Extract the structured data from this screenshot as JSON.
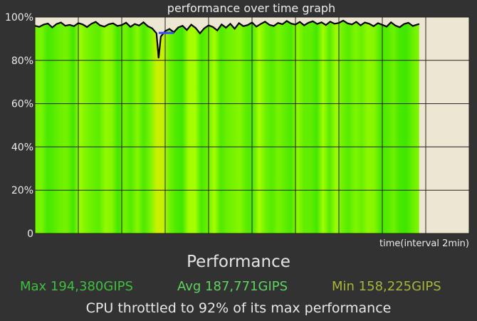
{
  "chart_data": {
    "type": "area",
    "title": "performance over time graph",
    "xlabel": "time(interval 2min)",
    "ylabel": "",
    "y_tick_labels": [
      "100%",
      "80%",
      "60%",
      "40%",
      "20%",
      "0"
    ],
    "ylim": [
      0,
      100
    ],
    "xlim": [
      0,
      100
    ],
    "data_extent_x": 88.5,
    "grid": true,
    "colors": {
      "fill_high": "#44f000",
      "fill_low": "#c8f000",
      "line": "#000000",
      "min_marker": "#3d4fff",
      "background": "#ede6d3",
      "grid": "#222222",
      "page_bg": "#323232"
    },
    "series": [
      {
        "values": [
          [
            0,
            96
          ],
          [
            1,
            95.5
          ],
          [
            2,
            96.5
          ],
          [
            3,
            97
          ],
          [
            4,
            95.2
          ],
          [
            5,
            96.8
          ],
          [
            6,
            97.5
          ],
          [
            7,
            96
          ],
          [
            8,
            96.4
          ],
          [
            9,
            95.8
          ],
          [
            10,
            97.2
          ],
          [
            11,
            96.6
          ],
          [
            12,
            95.4
          ],
          [
            13,
            96.9
          ],
          [
            14,
            97.8
          ],
          [
            15,
            96.2
          ],
          [
            16,
            95.6
          ],
          [
            17,
            96.7
          ],
          [
            18,
            97.1
          ],
          [
            19,
            95.9
          ],
          [
            20,
            96.3
          ],
          [
            21,
            97.4
          ],
          [
            22,
            95.5
          ],
          [
            23,
            96.8
          ],
          [
            24,
            96.1
          ],
          [
            25,
            97.6
          ],
          [
            26,
            95.8
          ],
          [
            27,
            94.8
          ],
          [
            28,
            92.5
          ],
          [
            28.5,
            81
          ],
          [
            29,
            91
          ],
          [
            30,
            93.5
          ],
          [
            31,
            94.5
          ],
          [
            32,
            93
          ],
          [
            33,
            95.2
          ],
          [
            34,
            96
          ],
          [
            35,
            94
          ],
          [
            36,
            96.5
          ],
          [
            37,
            95
          ],
          [
            38,
            92.5
          ],
          [
            39,
            94.8
          ],
          [
            40,
            96.2
          ],
          [
            41,
            95.4
          ],
          [
            42,
            93.8
          ],
          [
            43,
            96.6
          ],
          [
            44,
            95.1
          ],
          [
            45,
            96.9
          ],
          [
            46,
            94.6
          ],
          [
            47,
            97.2
          ],
          [
            48,
            95.8
          ],
          [
            49,
            96.3
          ],
          [
            50,
            97.5
          ],
          [
            51,
            95.6
          ],
          [
            52,
            96.8
          ],
          [
            53,
            97.9
          ],
          [
            54,
            96.4
          ],
          [
            55,
            95.9
          ],
          [
            56,
            97.3
          ],
          [
            57,
            96.7
          ],
          [
            58,
            98.2
          ],
          [
            59,
            97
          ],
          [
            60,
            96.5
          ],
          [
            61,
            97.8
          ],
          [
            62,
            96.2
          ],
          [
            63,
            97.4
          ],
          [
            64,
            98.1
          ],
          [
            65,
            96.8
          ],
          [
            66,
            97.6
          ],
          [
            67,
            96.3
          ],
          [
            68,
            97.9
          ],
          [
            69,
            96.9
          ],
          [
            70,
            97.3
          ],
          [
            71,
            98.4
          ],
          [
            72,
            97.1
          ],
          [
            73,
            96.6
          ],
          [
            74,
            97.8
          ],
          [
            75,
            96.2
          ],
          [
            76,
            97.5
          ],
          [
            77,
            96.9
          ],
          [
            78,
            95.8
          ],
          [
            79,
            97.2
          ],
          [
            80,
            96.4
          ],
          [
            81,
            95.6
          ],
          [
            82,
            97.6
          ],
          [
            83,
            96.1
          ],
          [
            84,
            95.3
          ],
          [
            85,
            96.8
          ],
          [
            86,
            97.4
          ],
          [
            87,
            95.9
          ],
          [
            88,
            96.5
          ],
          [
            88.5,
            96.8
          ]
        ]
      }
    ],
    "min_marker": {
      "x_start": 28.5,
      "x_end": 32,
      "y": 92.7
    }
  },
  "summary": {
    "heading": "Performance",
    "max": "Max 194,380GIPS",
    "avg": "Avg 187,771GIPS",
    "min": "Min 158,225GIPS",
    "throttle": "CPU throttled to 92% of its max performance"
  }
}
